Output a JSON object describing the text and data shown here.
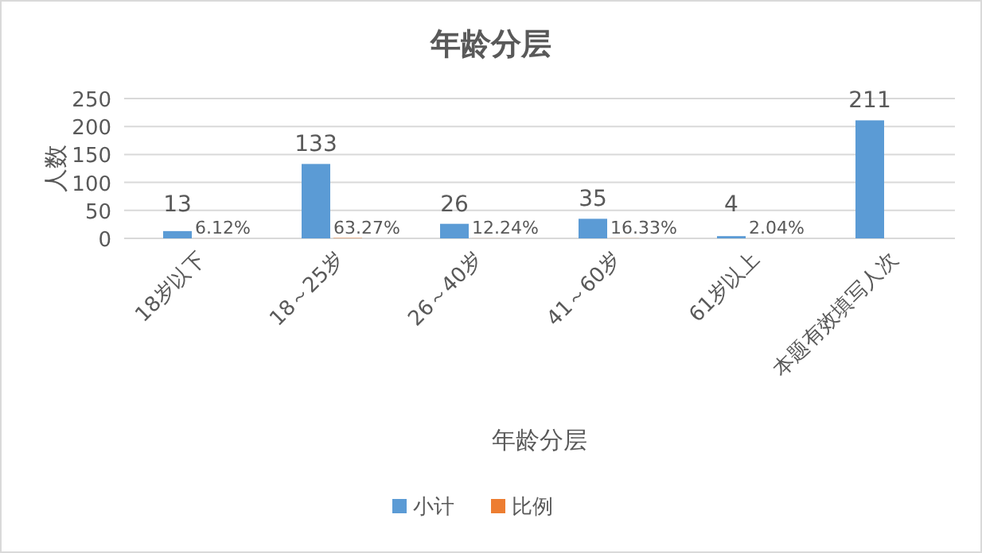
{
  "chart_data": {
    "type": "bar",
    "title": "年龄分层",
    "xlabel": "年龄分层",
    "ylabel": "人数",
    "categories": [
      "18岁以下",
      "18～25岁",
      "26～40岁",
      "41～60岁",
      "61岁以上",
      "本题有效填写人次"
    ],
    "series": [
      {
        "name": "小计",
        "color": "#5b9bd5",
        "values": [
          13,
          133,
          26,
          35,
          4,
          211
        ],
        "value_labels": [
          "13",
          "133",
          "26",
          "35",
          "4",
          "211"
        ]
      },
      {
        "name": "比例",
        "color": "#ed7d31",
        "values": [
          0.0612,
          0.6327,
          0.1224,
          0.1633,
          0.0204,
          null
        ],
        "value_labels": [
          "6.12%",
          "63.27%",
          "12.24%",
          "16.33%",
          "2.04%",
          null
        ]
      }
    ],
    "ylim": [
      0,
      250
    ],
    "yticks": [
      0,
      50,
      100,
      150,
      200,
      250
    ],
    "grid": "y",
    "legend": "bottom"
  }
}
